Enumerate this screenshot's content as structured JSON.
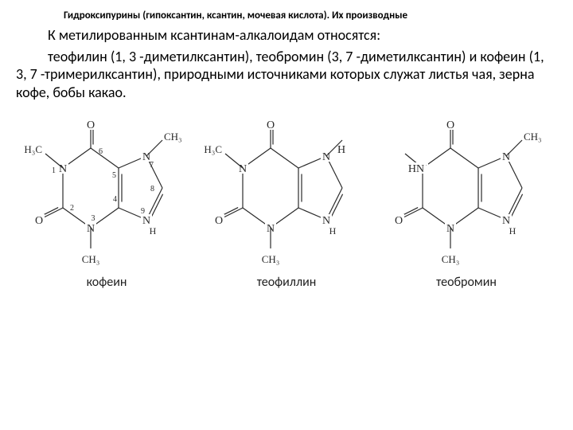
{
  "heading": "Гидроксипурины (гипоксантин, ксантин, мочевая кислота). Их производные",
  "para1": "К метилированным ксантинам-алкалоидам относятся:",
  "para2": "теофилин (1, 3 -диметилксантин), теобромин (3, 7 -диметилксантин) и кофеин (1, 3, 7 -тримерилксантин), природными источниками которых служат листья чая, зерна кофе, бобы какао.",
  "molecules": [
    {
      "label": "кофеин",
      "n1": "CH3",
      "n3": "CH3",
      "n7": "CH3",
      "n9": "H",
      "num_labels": true
    },
    {
      "label": "теофиллин",
      "n1": "CH3",
      "n3": "CH3",
      "n7": "H",
      "n9": "H",
      "num_labels": false
    },
    {
      "label": "теобромин",
      "n1": "H",
      "n3": "CH3",
      "n7": "CH3",
      "n9": "H",
      "num_labels": false
    }
  ],
  "style": {
    "atom_font": 14,
    "small_font": 10,
    "subst_font": 13
  }
}
